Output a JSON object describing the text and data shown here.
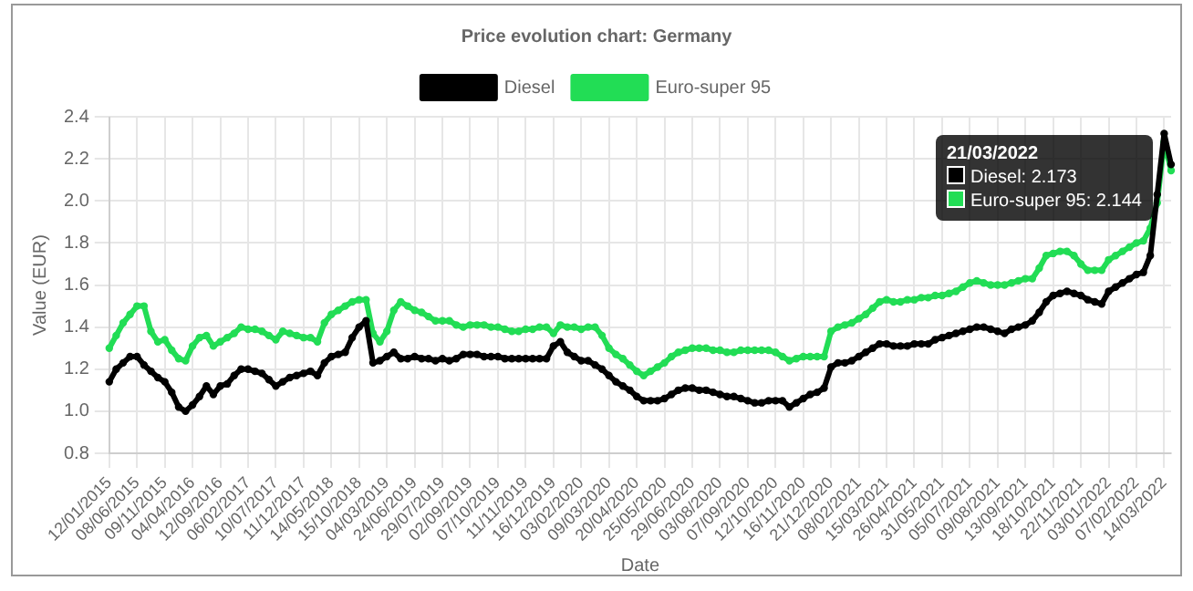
{
  "chart_data": {
    "type": "line",
    "title": "Price evolution chart: Germany",
    "xlabel": "Date",
    "ylabel": "Value (EUR)",
    "categories": [
      "12/01/2015",
      null,
      null,
      null,
      "08/06/2015",
      null,
      null,
      null,
      "09/11/2015",
      null,
      null,
      null,
      "04/04/2016",
      null,
      null,
      null,
      "12/09/2016",
      null,
      null,
      null,
      "06/02/2017",
      null,
      null,
      null,
      "10/07/2017",
      null,
      null,
      null,
      "11/12/2017",
      null,
      null,
      null,
      "14/05/2018",
      null,
      null,
      null,
      "15/10/2018",
      null,
      null,
      null,
      "04/03/2019",
      null,
      null,
      null,
      "24/06/2019",
      null,
      null,
      null,
      "29/07/2019",
      null,
      null,
      null,
      "02/09/2019",
      null,
      null,
      null,
      "07/10/2019",
      null,
      null,
      null,
      "11/11/2019",
      null,
      null,
      null,
      "16/12/2019",
      null,
      null,
      null,
      "03/02/2020",
      null,
      null,
      null,
      "09/03/2020",
      null,
      null,
      null,
      "20/04/2020",
      null,
      null,
      null,
      "25/05/2020",
      null,
      null,
      null,
      "29/06/2020",
      null,
      null,
      null,
      "03/08/2020",
      null,
      null,
      null,
      "07/09/2020",
      null,
      null,
      null,
      "12/10/2020",
      null,
      null,
      null,
      "16/11/2020",
      null,
      null,
      null,
      "21/12/2020",
      null,
      null,
      null,
      "08/02/2021",
      null,
      null,
      null,
      "15/03/2021",
      null,
      null,
      null,
      "26/04/2021",
      null,
      null,
      null,
      "31/05/2021",
      null,
      null,
      null,
      "05/07/2021",
      null,
      null,
      null,
      "09/08/2021",
      null,
      null,
      null,
      "13/09/2021",
      null,
      null,
      null,
      "18/10/2021",
      null,
      null,
      null,
      "22/11/2021",
      null,
      null,
      null,
      "03/01/2022",
      null,
      null,
      null,
      "07/02/2022",
      null,
      null,
      null,
      "14/03/2022",
      null
    ],
    "series": [
      {
        "name": "Diesel",
        "color": "#000000",
        "values": [
          1.14,
          1.2,
          1.23,
          1.26,
          1.26,
          1.22,
          1.19,
          1.16,
          1.14,
          1.09,
          1.02,
          1.0,
          1.03,
          1.07,
          1.12,
          1.08,
          1.12,
          1.13,
          1.17,
          1.2,
          1.2,
          1.19,
          1.18,
          1.15,
          1.12,
          1.14,
          1.16,
          1.17,
          1.18,
          1.19,
          1.17,
          1.23,
          1.26,
          1.27,
          1.28,
          1.35,
          1.4,
          1.43,
          1.23,
          1.24,
          1.26,
          1.28,
          1.25,
          1.25,
          1.26,
          1.25,
          1.25,
          1.24,
          1.25,
          1.24,
          1.25,
          1.27,
          1.27,
          1.27,
          1.26,
          1.26,
          1.26,
          1.25,
          1.25,
          1.25,
          1.25,
          1.25,
          1.25,
          1.25,
          1.31,
          1.33,
          1.28,
          1.26,
          1.24,
          1.24,
          1.22,
          1.2,
          1.17,
          1.14,
          1.12,
          1.1,
          1.07,
          1.05,
          1.05,
          1.05,
          1.06,
          1.08,
          1.1,
          1.11,
          1.11,
          1.1,
          1.1,
          1.09,
          1.08,
          1.07,
          1.07,
          1.06,
          1.05,
          1.04,
          1.04,
          1.05,
          1.05,
          1.05,
          1.02,
          1.04,
          1.06,
          1.08,
          1.09,
          1.11,
          1.21,
          1.23,
          1.23,
          1.24,
          1.26,
          1.28,
          1.3,
          1.32,
          1.32,
          1.31,
          1.31,
          1.31,
          1.32,
          1.32,
          1.32,
          1.34,
          1.35,
          1.36,
          1.37,
          1.38,
          1.39,
          1.4,
          1.4,
          1.39,
          1.38,
          1.37,
          1.39,
          1.4,
          1.41,
          1.43,
          1.47,
          1.52,
          1.55,
          1.56,
          1.57,
          1.56,
          1.55,
          1.53,
          1.52,
          1.51,
          1.57,
          1.59,
          1.61,
          1.63,
          1.65,
          1.66,
          1.74,
          2.03,
          2.32,
          2.173
        ]
      },
      {
        "name": "Euro-super 95",
        "color": "#22dd55",
        "values": [
          1.3,
          1.36,
          1.42,
          1.46,
          1.5,
          1.5,
          1.38,
          1.33,
          1.34,
          1.29,
          1.25,
          1.24,
          1.31,
          1.35,
          1.36,
          1.31,
          1.33,
          1.35,
          1.37,
          1.4,
          1.39,
          1.39,
          1.38,
          1.36,
          1.34,
          1.38,
          1.37,
          1.36,
          1.35,
          1.35,
          1.33,
          1.42,
          1.46,
          1.48,
          1.5,
          1.52,
          1.53,
          1.53,
          1.37,
          1.33,
          1.38,
          1.48,
          1.52,
          1.5,
          1.48,
          1.47,
          1.45,
          1.43,
          1.43,
          1.43,
          1.41,
          1.4,
          1.41,
          1.41,
          1.41,
          1.4,
          1.4,
          1.39,
          1.38,
          1.38,
          1.39,
          1.39,
          1.4,
          1.4,
          1.37,
          1.41,
          1.4,
          1.4,
          1.39,
          1.4,
          1.4,
          1.36,
          1.3,
          1.27,
          1.25,
          1.22,
          1.19,
          1.17,
          1.19,
          1.21,
          1.23,
          1.26,
          1.28,
          1.29,
          1.3,
          1.3,
          1.3,
          1.29,
          1.29,
          1.28,
          1.28,
          1.29,
          1.29,
          1.29,
          1.29,
          1.29,
          1.28,
          1.26,
          1.24,
          1.25,
          1.26,
          1.26,
          1.26,
          1.26,
          1.38,
          1.4,
          1.41,
          1.42,
          1.44,
          1.46,
          1.49,
          1.52,
          1.53,
          1.52,
          1.52,
          1.53,
          1.53,
          1.54,
          1.54,
          1.55,
          1.55,
          1.56,
          1.57,
          1.59,
          1.61,
          1.62,
          1.61,
          1.6,
          1.6,
          1.6,
          1.61,
          1.62,
          1.63,
          1.63,
          1.68,
          1.74,
          1.75,
          1.76,
          1.76,
          1.74,
          1.7,
          1.67,
          1.67,
          1.67,
          1.72,
          1.74,
          1.76,
          1.78,
          1.8,
          1.81,
          1.87,
          1.99,
          2.28,
          2.144
        ]
      }
    ],
    "ylim": [
      0.8,
      2.4
    ],
    "yticks": [
      0.8,
      {
        "value": 1,
        "label": "1.0"
      },
      1.2,
      1.4,
      1.6,
      1.8,
      {
        "value": 2,
        "label": "2.0"
      },
      2.2,
      2.4
    ],
    "grid": true,
    "legend": "top",
    "marker": "circle",
    "line_style": "solid",
    "annotations": [
      "21/03/2022",
      "Diesel: 2.173",
      "Euro-super 95: 2.144"
    ]
  }
}
